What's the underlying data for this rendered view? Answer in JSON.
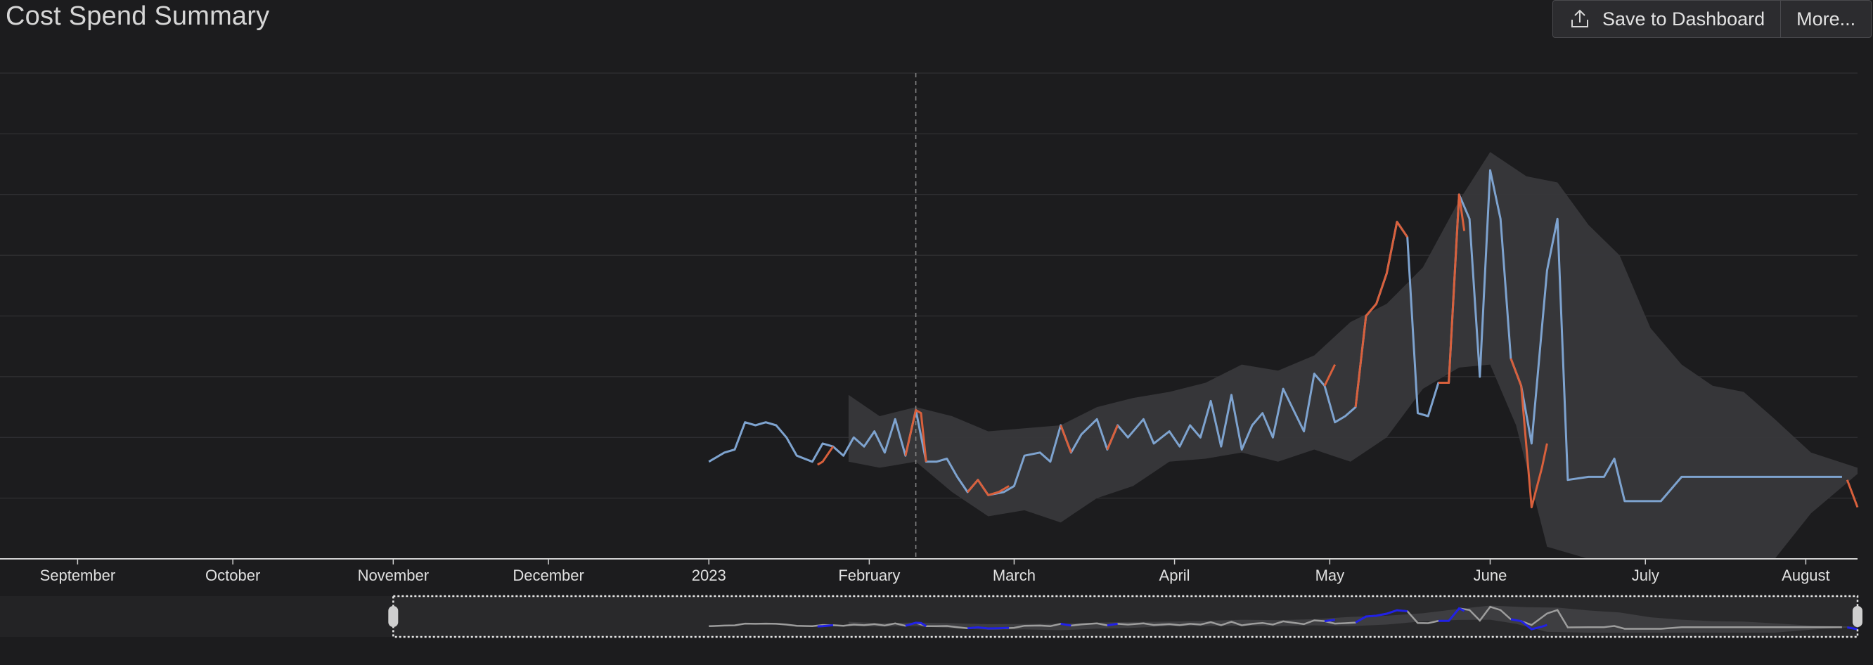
{
  "header": {
    "title": "Cost Spend Summary",
    "save_label": "Save to Dashboard",
    "more_label": "More...",
    "save_icon": "upload-icon"
  },
  "colors": {
    "background": "#1c1c1e",
    "actual_line": "#7ea3cf",
    "anomaly_line": "#d9603c",
    "expected_band": "#38383b",
    "navigator_line": "#9a9a9a",
    "navigator_anomaly": "#1a1ae6"
  },
  "chart_data": {
    "type": "line",
    "title": "",
    "xlabel": "",
    "ylabel": "",
    "grid": true,
    "legend": "none",
    "x_tick_labels": [
      {
        "date": "2022-09-01",
        "label": "September"
      },
      {
        "date": "2022-10-01",
        "label": "October"
      },
      {
        "date": "2022-11-01",
        "label": "November"
      },
      {
        "date": "2022-12-01",
        "label": "December"
      },
      {
        "date": "2023-01-01",
        "label": "2023"
      },
      {
        "date": "2023-02-01",
        "label": "February"
      },
      {
        "date": "2023-03-01",
        "label": "March"
      },
      {
        "date": "2023-04-01",
        "label": "April"
      },
      {
        "date": "2023-05-01",
        "label": "May"
      },
      {
        "date": "2023-06-01",
        "label": "June"
      },
      {
        "date": "2023-07-01",
        "label": "July"
      },
      {
        "date": "2023-08-01",
        "label": "August"
      }
    ],
    "xlim": [
      "2022-08-17",
      "2023-08-11"
    ],
    "ylim": [
      0,
      8
    ],
    "marker_date": "2023-02-10",
    "series": [
      {
        "role": "actual",
        "points": [
          [
            "2023-01-01",
            1.6
          ],
          [
            "2023-01-04",
            1.75
          ],
          [
            "2023-01-06",
            1.8
          ],
          [
            "2023-01-08",
            2.25
          ],
          [
            "2023-01-10",
            2.2
          ],
          [
            "2023-01-12",
            2.25
          ],
          [
            "2023-01-14",
            2.2
          ],
          [
            "2023-01-16",
            2.0
          ],
          [
            "2023-01-18",
            1.7
          ],
          [
            "2023-01-21",
            1.6
          ],
          [
            "2023-01-23",
            1.9
          ],
          [
            "2023-01-25",
            1.85
          ],
          [
            "2023-01-27",
            1.7
          ],
          [
            "2023-01-29",
            2.0
          ],
          [
            "2023-01-31",
            1.85
          ],
          [
            "2023-02-02",
            2.1
          ],
          [
            "2023-02-04",
            1.75
          ],
          [
            "2023-02-06",
            2.3
          ],
          [
            "2023-02-08",
            1.7
          ],
          [
            "2023-02-10",
            2.45
          ],
          [
            "2023-02-12",
            1.6
          ],
          [
            "2023-02-14",
            1.6
          ],
          [
            "2023-02-16",
            1.65
          ],
          [
            "2023-02-18",
            1.35
          ],
          [
            "2023-02-20",
            1.1
          ],
          [
            "2023-02-22",
            1.3
          ],
          [
            "2023-02-24",
            1.05
          ],
          [
            "2023-02-27",
            1.1
          ],
          [
            "2023-03-01",
            1.2
          ],
          [
            "2023-03-03",
            1.7
          ],
          [
            "2023-03-06",
            1.75
          ],
          [
            "2023-03-08",
            1.6
          ],
          [
            "2023-03-10",
            2.2
          ],
          [
            "2023-03-12",
            1.75
          ],
          [
            "2023-03-14",
            2.05
          ],
          [
            "2023-03-17",
            2.3
          ],
          [
            "2023-03-19",
            1.8
          ],
          [
            "2023-03-21",
            2.2
          ],
          [
            "2023-03-23",
            2.0
          ],
          [
            "2023-03-26",
            2.3
          ],
          [
            "2023-03-28",
            1.9
          ],
          [
            "2023-03-31",
            2.1
          ],
          [
            "2023-04-02",
            1.85
          ],
          [
            "2023-04-04",
            2.2
          ],
          [
            "2023-04-06",
            2.0
          ],
          [
            "2023-04-08",
            2.6
          ],
          [
            "2023-04-10",
            1.85
          ],
          [
            "2023-04-12",
            2.7
          ],
          [
            "2023-04-14",
            1.8
          ],
          [
            "2023-04-16",
            2.2
          ],
          [
            "2023-04-18",
            2.4
          ],
          [
            "2023-04-20",
            2.0
          ],
          [
            "2023-04-22",
            2.8
          ],
          [
            "2023-04-24",
            2.45
          ],
          [
            "2023-04-26",
            2.1
          ],
          [
            "2023-04-28",
            3.05
          ],
          [
            "2023-04-30",
            2.85
          ],
          [
            "2023-05-02",
            2.25
          ],
          [
            "2023-05-04",
            2.35
          ],
          [
            "2023-05-06",
            2.5
          ],
          [
            "2023-05-08",
            4.0
          ],
          [
            "2023-05-10",
            4.2
          ],
          [
            "2023-05-12",
            4.7
          ],
          [
            "2023-05-14",
            5.55
          ],
          [
            "2023-05-16",
            5.3
          ],
          [
            "2023-05-18",
            2.4
          ],
          [
            "2023-05-20",
            2.35
          ],
          [
            "2023-05-22",
            2.9
          ],
          [
            "2023-05-24",
            2.9
          ],
          [
            "2023-05-26",
            6.0
          ],
          [
            "2023-05-28",
            5.6
          ],
          [
            "2023-05-30",
            3.0
          ],
          [
            "2023-06-01",
            6.4
          ],
          [
            "2023-06-03",
            5.6
          ],
          [
            "2023-06-05",
            3.3
          ],
          [
            "2023-06-07",
            2.85
          ],
          [
            "2023-06-09",
            1.9
          ],
          [
            "2023-06-12",
            4.75
          ],
          [
            "2023-06-14",
            5.6
          ],
          [
            "2023-06-16",
            1.3
          ],
          [
            "2023-06-20",
            1.35
          ],
          [
            "2023-06-23",
            1.35
          ],
          [
            "2023-06-25",
            1.65
          ],
          [
            "2023-06-27",
            0.95
          ],
          [
            "2023-07-04",
            0.95
          ],
          [
            "2023-07-08",
            1.35
          ],
          [
            "2023-08-08",
            1.35
          ]
        ]
      },
      {
        "role": "anomaly",
        "segments": [
          [
            [
              "2023-01-22",
              1.55
            ],
            [
              "2023-01-23",
              1.6
            ],
            [
              "2023-01-25",
              1.85
            ]
          ],
          [
            [
              "2023-02-08",
              1.7
            ],
            [
              "2023-02-10",
              2.45
            ],
            [
              "2023-02-11",
              2.4
            ],
            [
              "2023-02-12",
              1.6
            ]
          ],
          [
            [
              "2023-02-20",
              1.1
            ],
            [
              "2023-02-22",
              1.3
            ],
            [
              "2023-02-24",
              1.05
            ],
            [
              "2023-02-26",
              1.1
            ],
            [
              "2023-02-28",
              1.2
            ]
          ],
          [
            [
              "2023-03-10",
              2.2
            ],
            [
              "2023-03-12",
              1.75
            ]
          ],
          [
            [
              "2023-03-19",
              1.8
            ],
            [
              "2023-03-21",
              2.2
            ]
          ],
          [
            [
              "2023-04-30",
              2.85
            ],
            [
              "2023-05-02",
              3.2
            ]
          ],
          [
            [
              "2023-05-06",
              2.5
            ],
            [
              "2023-05-08",
              4.0
            ],
            [
              "2023-05-10",
              4.2
            ],
            [
              "2023-05-12",
              4.7
            ],
            [
              "2023-05-14",
              5.55
            ],
            [
              "2023-05-16",
              5.3
            ]
          ],
          [
            [
              "2023-05-22",
              2.9
            ],
            [
              "2023-05-24",
              2.9
            ],
            [
              "2023-05-26",
              6.0
            ],
            [
              "2023-05-27",
              5.4
            ]
          ],
          [
            [
              "2023-06-05",
              3.3
            ],
            [
              "2023-06-07",
              2.85
            ]
          ],
          [
            [
              "2023-06-07",
              2.85
            ],
            [
              "2023-06-09",
              0.85
            ],
            [
              "2023-06-11",
              1.5
            ],
            [
              "2023-06-12",
              1.9
            ]
          ],
          [
            [
              "2023-08-09",
              1.3
            ],
            [
              "2023-08-11",
              0.85
            ]
          ]
        ]
      },
      {
        "role": "expected_range",
        "upper": [
          [
            "2023-01-28",
            2.7
          ],
          [
            "2023-02-03",
            2.35
          ],
          [
            "2023-02-10",
            2.5
          ],
          [
            "2023-02-17",
            2.35
          ],
          [
            "2023-02-24",
            2.1
          ],
          [
            "2023-03-03",
            2.15
          ],
          [
            "2023-03-10",
            2.2
          ],
          [
            "2023-03-17",
            2.5
          ],
          [
            "2023-03-24",
            2.65
          ],
          [
            "2023-03-31",
            2.75
          ],
          [
            "2023-04-07",
            2.9
          ],
          [
            "2023-04-14",
            3.2
          ],
          [
            "2023-04-21",
            3.1
          ],
          [
            "2023-04-28",
            3.35
          ],
          [
            "2023-05-05",
            3.9
          ],
          [
            "2023-05-12",
            4.2
          ],
          [
            "2023-05-19",
            4.8
          ],
          [
            "2023-05-26",
            5.9
          ],
          [
            "2023-06-01",
            6.7
          ],
          [
            "2023-06-08",
            6.3
          ],
          [
            "2023-06-14",
            6.2
          ],
          [
            "2023-06-20",
            5.5
          ],
          [
            "2023-06-26",
            5.0
          ],
          [
            "2023-07-02",
            3.8
          ],
          [
            "2023-07-08",
            3.2
          ],
          [
            "2023-07-14",
            2.85
          ],
          [
            "2023-07-20",
            2.75
          ],
          [
            "2023-07-26",
            2.3
          ],
          [
            "2023-08-02",
            1.75
          ],
          [
            "2023-08-11",
            1.5
          ]
        ],
        "lower": [
          [
            "2023-08-11",
            1.4
          ],
          [
            "2023-08-02",
            0.75
          ],
          [
            "2023-07-26",
            0.0
          ],
          [
            "2023-07-14",
            0.0
          ],
          [
            "2023-07-02",
            0.0
          ],
          [
            "2023-06-20",
            0.0
          ],
          [
            "2023-06-12",
            0.2
          ],
          [
            "2023-06-06",
            2.2
          ],
          [
            "2023-06-01",
            3.2
          ],
          [
            "2023-05-26",
            3.15
          ],
          [
            "2023-05-19",
            2.8
          ],
          [
            "2023-05-12",
            2.0
          ],
          [
            "2023-05-05",
            1.6
          ],
          [
            "2023-04-28",
            1.8
          ],
          [
            "2023-04-21",
            1.6
          ],
          [
            "2023-04-14",
            1.75
          ],
          [
            "2023-04-07",
            1.65
          ],
          [
            "2023-03-31",
            1.6
          ],
          [
            "2023-03-24",
            1.2
          ],
          [
            "2023-03-17",
            1.0
          ],
          [
            "2023-03-10",
            0.6
          ],
          [
            "2023-03-03",
            0.8
          ],
          [
            "2023-02-24",
            0.7
          ],
          [
            "2023-02-17",
            1.1
          ],
          [
            "2023-02-10",
            1.6
          ],
          [
            "2023-02-03",
            1.5
          ],
          [
            "2023-01-28",
            1.6
          ]
        ]
      }
    ],
    "navigator": {
      "selection": [
        "2022-11-01",
        "2023-08-11"
      ]
    }
  }
}
